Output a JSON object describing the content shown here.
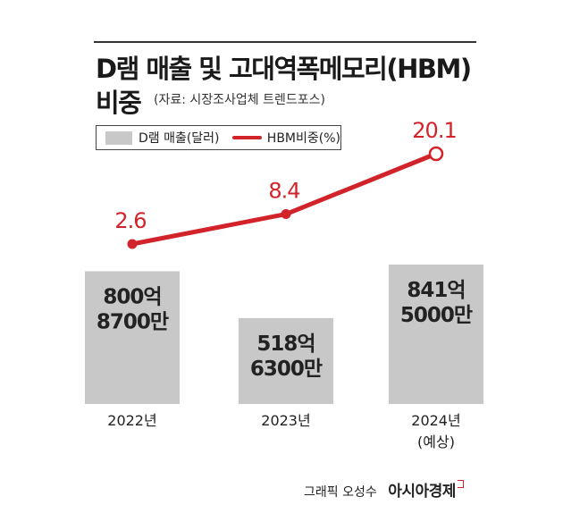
{
  "header": {
    "title_line1": "D램 매출 및 고대역폭메모리(HBM)",
    "title_line2": "비중",
    "source": "(자료: 시장조사업체 트렌드포스)"
  },
  "legend": {
    "bar_label": "D램 매출(달러)",
    "line_label": "HBM비중(%)"
  },
  "chart_data": {
    "type": "bar",
    "categories": [
      "2022년",
      "2023년",
      "2024년\n(예상)"
    ],
    "series": [
      {
        "name": "D램 매출(달러)",
        "kind": "bar",
        "values": [
          800.87,
          518.63,
          841.5
        ],
        "value_labels": [
          "800억\n8700만",
          "518억\n6300만",
          "841억\n5000만"
        ]
      },
      {
        "name": "HBM비중(%)",
        "kind": "line",
        "values": [
          2.6,
          8.4,
          20.1
        ],
        "value_labels": [
          "2.6",
          "8.4",
          "20.1"
        ]
      }
    ],
    "colors": {
      "bar": "#c8c8c8",
      "line": "#d2232a",
      "label": "#d2232a"
    },
    "grid": false,
    "legend_position": "top-left"
  },
  "credit": {
    "author": "그래픽 오성수",
    "brand": "아시아경제"
  }
}
